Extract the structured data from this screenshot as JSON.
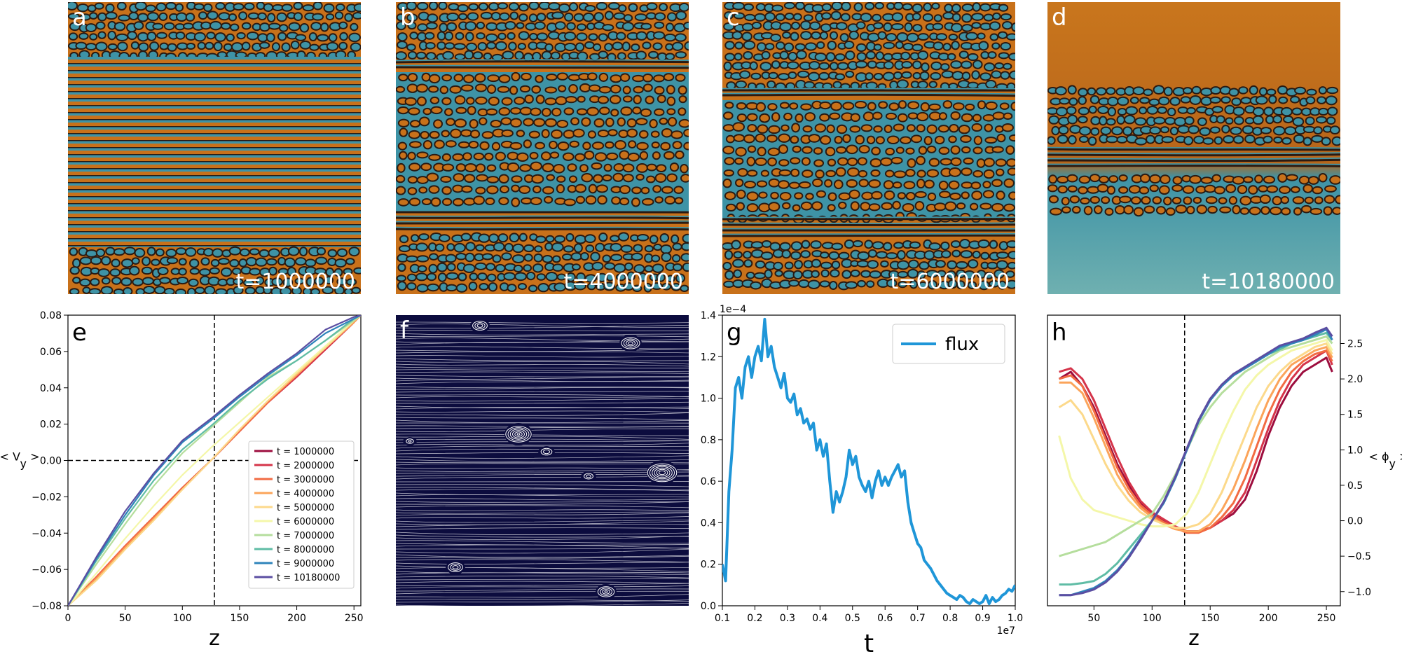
{
  "snapshots": [
    {
      "letter": "a",
      "time_label": "t=1000000",
      "mode": "a"
    },
    {
      "letter": "b",
      "time_label": "t=4000000",
      "mode": "b"
    },
    {
      "letter": "c",
      "time_label": "t=6000000",
      "mode": "c"
    },
    {
      "letter": "d",
      "time_label": "t=10180000",
      "mode": "d"
    }
  ],
  "streamline_panel": {
    "letter": "f"
  },
  "palette": {
    "orange": "#c8711a",
    "teal": "#3e93a6",
    "dark": "#2a1a12",
    "navy": "#0c0c3e",
    "flux_line": "#1f96d8",
    "series_colors": [
      "#9d0d3e",
      "#d5344a",
      "#f26b43",
      "#fba45a",
      "#fcd98b",
      "#f4f7a9",
      "#b5de9d",
      "#5fbca5",
      "#2f84bb",
      "#5b4ea2"
    ]
  },
  "chart_data": [
    {
      "panel": "e",
      "type": "line",
      "xlabel": "z",
      "ylabel": "< V_y >",
      "xlim": [
        0,
        256
      ],
      "ylim": [
        -0.08,
        0.08
      ],
      "xticks": [
        0,
        50,
        100,
        150,
        200,
        250
      ],
      "yticks": [
        -0.08,
        -0.06,
        -0.04,
        -0.02,
        0.0,
        0.02,
        0.04,
        0.06,
        0.08
      ],
      "ytick_labels": [
        "−0.08",
        "−0.06",
        "−0.04",
        "−0.02",
        "0.00",
        "0.02",
        "0.04",
        "0.06",
        "0.08"
      ],
      "vline_x": 128,
      "hline_y": 0,
      "legend_position": "lower right",
      "x": [
        0,
        25,
        50,
        75,
        100,
        125,
        150,
        175,
        200,
        225,
        250,
        256
      ],
      "series": [
        {
          "name": "t = 1000000",
          "values": [
            -0.08,
            -0.064,
            -0.047,
            -0.031,
            -0.015,
            0.0,
            0.016,
            0.032,
            0.046,
            0.061,
            0.076,
            0.08
          ]
        },
        {
          "name": "t = 2000000",
          "values": [
            -0.08,
            -0.064,
            -0.047,
            -0.031,
            -0.015,
            0.0,
            0.016,
            0.032,
            0.046,
            0.061,
            0.076,
            0.08
          ]
        },
        {
          "name": "t = 3000000",
          "values": [
            -0.08,
            -0.064,
            -0.047,
            -0.031,
            -0.015,
            0.0,
            0.016,
            0.032,
            0.047,
            0.062,
            0.076,
            0.08
          ]
        },
        {
          "name": "t = 4000000",
          "values": [
            -0.08,
            -0.065,
            -0.048,
            -0.032,
            -0.016,
            0.0,
            0.017,
            0.033,
            0.047,
            0.062,
            0.076,
            0.08
          ]
        },
        {
          "name": "t = 5000000",
          "values": [
            -0.08,
            -0.066,
            -0.049,
            -0.033,
            -0.016,
            0.0,
            0.017,
            0.033,
            0.048,
            0.062,
            0.077,
            0.08
          ]
        },
        {
          "name": "t = 6000000",
          "values": [
            -0.08,
            -0.062,
            -0.043,
            -0.025,
            -0.008,
            0.007,
            0.021,
            0.035,
            0.049,
            0.063,
            0.077,
            0.08
          ]
        },
        {
          "name": "t = 7000000",
          "values": [
            -0.08,
            -0.057,
            -0.035,
            -0.014,
            0.004,
            0.018,
            0.032,
            0.046,
            0.055,
            0.066,
            0.077,
            0.08
          ]
        },
        {
          "name": "t = 8000000",
          "values": [
            -0.08,
            -0.055,
            -0.032,
            -0.011,
            0.006,
            0.019,
            0.033,
            0.045,
            0.055,
            0.066,
            0.078,
            0.08
          ]
        },
        {
          "name": "t = 9000000",
          "values": [
            -0.08,
            -0.054,
            -0.03,
            -0.008,
            0.01,
            0.022,
            0.035,
            0.047,
            0.058,
            0.07,
            0.078,
            0.08
          ]
        },
        {
          "name": "t = 10180000",
          "values": [
            -0.08,
            -0.053,
            -0.028,
            -0.007,
            0.011,
            0.023,
            0.036,
            0.048,
            0.059,
            0.072,
            0.079,
            0.08
          ]
        }
      ]
    },
    {
      "panel": "g",
      "type": "line",
      "xlabel": "t",
      "ylabel": "",
      "xlim": [
        0.1,
        1.0
      ],
      "ylim": [
        0,
        1.4
      ],
      "x_multiplier": "1e7",
      "y_multiplier": "1e−4",
      "xticks": [
        0.1,
        0.2,
        0.3,
        0.4,
        0.5,
        0.6,
        0.7,
        0.8,
        0.9,
        1.0
      ],
      "yticks": [
        0.0,
        0.2,
        0.4,
        0.6,
        0.8,
        1.0,
        1.2,
        1.4
      ],
      "legend_position": "upper right",
      "series": [
        {
          "name": "flux",
          "x": [
            0.1,
            0.11,
            0.12,
            0.13,
            0.14,
            0.15,
            0.16,
            0.17,
            0.18,
            0.19,
            0.2,
            0.21,
            0.22,
            0.23,
            0.24,
            0.25,
            0.26,
            0.27,
            0.28,
            0.29,
            0.3,
            0.31,
            0.32,
            0.33,
            0.34,
            0.35,
            0.36,
            0.37,
            0.38,
            0.39,
            0.4,
            0.41,
            0.42,
            0.43,
            0.44,
            0.45,
            0.46,
            0.47,
            0.48,
            0.49,
            0.5,
            0.51,
            0.52,
            0.53,
            0.54,
            0.55,
            0.56,
            0.57,
            0.58,
            0.59,
            0.6,
            0.61,
            0.62,
            0.63,
            0.64,
            0.65,
            0.66,
            0.67,
            0.68,
            0.69,
            0.7,
            0.71,
            0.72,
            0.73,
            0.74,
            0.75,
            0.76,
            0.77,
            0.78,
            0.79,
            0.8,
            0.81,
            0.82,
            0.83,
            0.84,
            0.85,
            0.86,
            0.87,
            0.88,
            0.89,
            0.9,
            0.91,
            0.92,
            0.93,
            0.94,
            0.95,
            0.96,
            0.97,
            0.98,
            0.99,
            1.0
          ],
          "values": [
            0.2,
            0.12,
            0.55,
            0.75,
            1.05,
            1.1,
            1.0,
            1.15,
            1.2,
            1.1,
            1.2,
            1.25,
            1.18,
            1.38,
            1.2,
            1.25,
            1.15,
            1.1,
            1.05,
            1.12,
            1.0,
            0.98,
            1.02,
            0.92,
            0.95,
            0.88,
            0.9,
            0.85,
            0.88,
            0.75,
            0.8,
            0.72,
            0.78,
            0.6,
            0.45,
            0.55,
            0.5,
            0.55,
            0.62,
            0.75,
            0.68,
            0.72,
            0.62,
            0.58,
            0.55,
            0.6,
            0.52,
            0.6,
            0.65,
            0.58,
            0.62,
            0.58,
            0.62,
            0.65,
            0.68,
            0.62,
            0.65,
            0.5,
            0.4,
            0.35,
            0.3,
            0.28,
            0.22,
            0.2,
            0.18,
            0.15,
            0.12,
            0.1,
            0.08,
            0.06,
            0.05,
            0.04,
            0.03,
            0.05,
            0.04,
            0.02,
            0.01,
            0.03,
            0.02,
            0.01,
            0.02,
            0.05,
            0.01,
            0.04,
            0.02,
            0.03,
            0.05,
            0.06,
            0.08,
            0.07,
            0.1
          ]
        }
      ]
    },
    {
      "panel": "h",
      "type": "line",
      "xlabel": "z",
      "ylabel": "< ϕ_y >",
      "xlim": [
        10,
        262
      ],
      "ylim": [
        -1.2,
        2.9
      ],
      "ytick_side": "right",
      "xticks": [
        50,
        100,
        150,
        200,
        250
      ],
      "yticks": [
        -1.0,
        -0.5,
        0.0,
        0.5,
        1.0,
        1.5,
        2.0,
        2.5
      ],
      "ytick_labels": [
        "−1.0",
        "−0.5",
        "0.0",
        "0.5",
        "1.0",
        "1.5",
        "2.0",
        "2.5"
      ],
      "vline_x": 128,
      "x": [
        20,
        30,
        40,
        50,
        60,
        70,
        80,
        90,
        100,
        110,
        120,
        130,
        140,
        150,
        160,
        170,
        180,
        190,
        200,
        210,
        220,
        230,
        240,
        250,
        255
      ],
      "series": [
        {
          "name": "t = 1000000",
          "values": [
            2.0,
            2.1,
            1.9,
            1.6,
            1.2,
            0.8,
            0.5,
            0.25,
            0.1,
            0.0,
            -0.1,
            -0.15,
            -0.15,
            -0.1,
            0.0,
            0.1,
            0.3,
            0.7,
            1.2,
            1.6,
            1.9,
            2.1,
            2.2,
            2.3,
            2.1
          ]
        },
        {
          "name": "t = 2000000",
          "values": [
            2.1,
            2.15,
            2.0,
            1.7,
            1.3,
            0.9,
            0.55,
            0.28,
            0.12,
            0.02,
            -0.08,
            -0.15,
            -0.15,
            -0.1,
            0.0,
            0.15,
            0.4,
            0.85,
            1.3,
            1.7,
            2.0,
            2.2,
            2.3,
            2.4,
            2.2
          ]
        },
        {
          "name": "t = 3000000",
          "values": [
            2.0,
            2.05,
            1.9,
            1.55,
            1.15,
            0.75,
            0.45,
            0.22,
            0.08,
            -0.02,
            -0.1,
            -0.17,
            -0.17,
            -0.1,
            0.05,
            0.25,
            0.6,
            1.05,
            1.5,
            1.85,
            2.1,
            2.25,
            2.35,
            2.4,
            2.25
          ]
        },
        {
          "name": "t = 4000000",
          "values": [
            1.95,
            1.95,
            1.8,
            1.45,
            1.05,
            0.65,
            0.38,
            0.18,
            0.05,
            -0.05,
            -0.12,
            -0.15,
            -0.15,
            -0.05,
            0.15,
            0.45,
            0.85,
            1.3,
            1.7,
            2.0,
            2.2,
            2.3,
            2.4,
            2.45,
            2.3
          ]
        },
        {
          "name": "t = 5000000",
          "values": [
            1.6,
            1.7,
            1.5,
            1.15,
            0.8,
            0.5,
            0.28,
            0.12,
            0.02,
            -0.05,
            -0.1,
            -0.1,
            -0.05,
            0.1,
            0.4,
            0.8,
            1.2,
            1.6,
            1.9,
            2.1,
            2.25,
            2.35,
            2.45,
            2.5,
            2.35
          ]
        },
        {
          "name": "t = 6000000",
          "values": [
            1.2,
            0.6,
            0.3,
            0.15,
            0.1,
            0.05,
            0.0,
            -0.05,
            -0.08,
            -0.08,
            -0.05,
            0.1,
            0.4,
            0.8,
            1.2,
            1.55,
            1.85,
            2.05,
            2.2,
            2.3,
            2.4,
            2.45,
            2.5,
            2.55,
            2.4
          ]
        },
        {
          "name": "t = 7000000",
          "values": [
            -0.5,
            -0.45,
            -0.4,
            -0.35,
            -0.3,
            -0.2,
            -0.1,
            0.0,
            0.1,
            0.35,
            0.65,
            1.0,
            1.35,
            1.6,
            1.8,
            1.95,
            2.1,
            2.2,
            2.3,
            2.4,
            2.45,
            2.5,
            2.55,
            2.6,
            2.5
          ]
        },
        {
          "name": "t = 8000000",
          "values": [
            -0.9,
            -0.9,
            -0.88,
            -0.85,
            -0.75,
            -0.6,
            -0.4,
            -0.2,
            0.0,
            0.25,
            0.6,
            1.0,
            1.4,
            1.7,
            1.9,
            2.05,
            2.15,
            2.25,
            2.35,
            2.42,
            2.5,
            2.55,
            2.6,
            2.65,
            2.55
          ]
        },
        {
          "name": "t = 9000000",
          "values": [
            -1.05,
            -1.05,
            -1.0,
            -0.95,
            -0.85,
            -0.7,
            -0.5,
            -0.25,
            0.0,
            0.25,
            0.6,
            1.0,
            1.4,
            1.7,
            1.9,
            2.05,
            2.15,
            2.25,
            2.35,
            2.45,
            2.5,
            2.55,
            2.62,
            2.7,
            2.55
          ]
        },
        {
          "name": "t = 10180000",
          "values": [
            -1.05,
            -1.05,
            -1.02,
            -0.97,
            -0.87,
            -0.72,
            -0.52,
            -0.27,
            0.0,
            0.27,
            0.62,
            1.02,
            1.42,
            1.72,
            1.92,
            2.07,
            2.17,
            2.27,
            2.37,
            2.47,
            2.52,
            2.57,
            2.65,
            2.72,
            2.6
          ]
        }
      ]
    }
  ]
}
